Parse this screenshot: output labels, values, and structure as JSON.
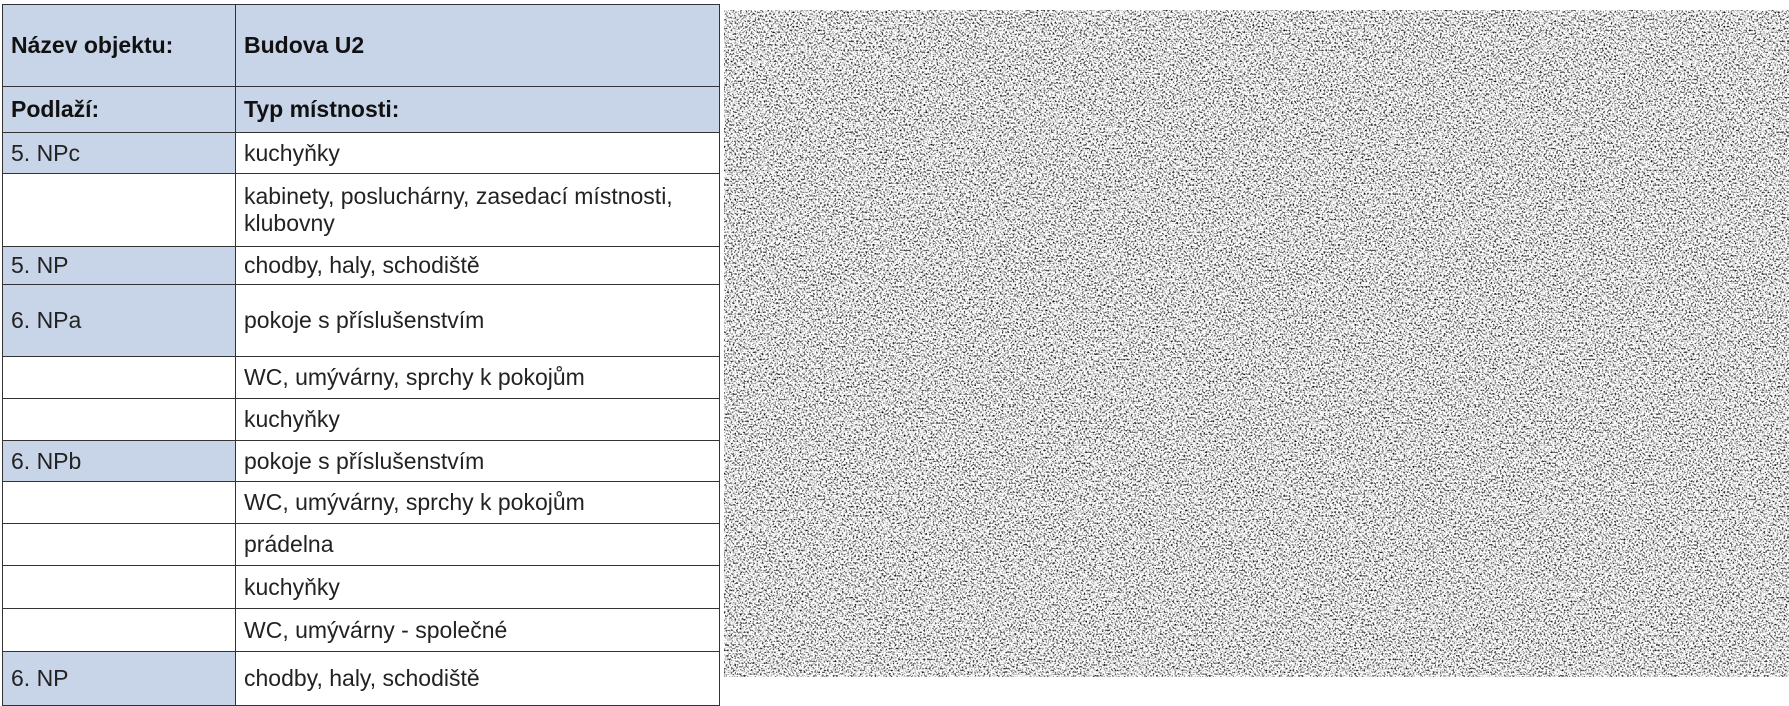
{
  "table": {
    "header": [
      [
        "Název objektu:",
        "Budova U2"
      ],
      [
        "Podlaží:",
        "Typ místnosti:"
      ]
    ],
    "rows": [
      [
        "5. NPc",
        "kuchyňky"
      ],
      [
        null,
        "kabinety, posluchárny, zasedací místnosti, klubovny"
      ],
      [
        "5. NP",
        "chodby, haly, schodiště"
      ],
      [
        "6. NPa",
        "pokoje s příslušenstvím"
      ],
      [
        null,
        "WC, umývárny, sprchy k pokojům"
      ],
      [
        null,
        "kuchyňky"
      ],
      [
        "6. NPb",
        "pokoje s příslušenstvím"
      ],
      [
        null,
        "WC, umývárny, sprchy k pokojům"
      ],
      [
        null,
        "prádelna"
      ],
      [
        null,
        "kuchyňky"
      ],
      [
        null,
        "WC, umývárny - společné"
      ],
      [
        "6. NP",
        "chodby, haly, schodiště"
      ]
    ]
  }
}
